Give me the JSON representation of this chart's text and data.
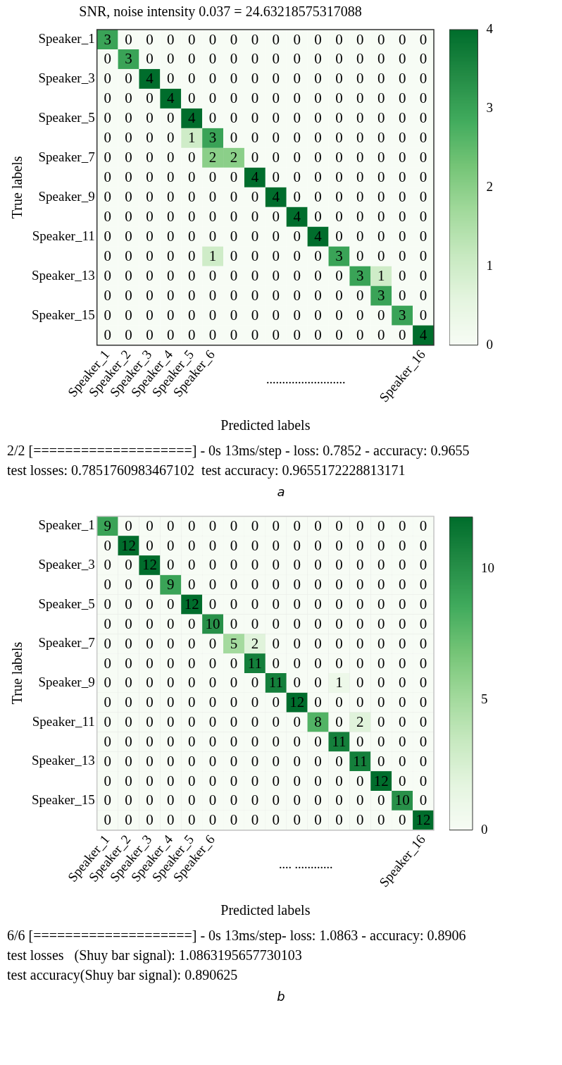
{
  "chart_data": [
    {
      "type": "heatmap",
      "title": "SNR, noise intensity 0.037 = 24.63218575317088",
      "xlabel": "Predicted labels",
      "ylabel": "True labels",
      "categories": [
        "Speaker_1",
        "Speaker_2",
        "Speaker_3",
        "Speaker_4",
        "Speaker_5",
        "Speaker_6",
        null,
        null,
        null,
        null,
        null,
        null,
        null,
        null,
        null,
        "Speaker_16"
      ],
      "y_categories": [
        "Speaker_1",
        null,
        "Speaker_3",
        null,
        "Speaker_5",
        null,
        "Speaker_7",
        null,
        "Speaker_9",
        null,
        "Speaker_11",
        null,
        "Speaker_13",
        null,
        "Speaker_15",
        null
      ],
      "cells": [
        [
          3,
          0,
          0,
          0,
          0,
          0,
          0,
          0,
          0,
          0,
          0,
          0,
          0,
          0,
          0,
          0
        ],
        [
          0,
          3,
          0,
          0,
          0,
          0,
          0,
          0,
          0,
          0,
          0,
          0,
          0,
          0,
          0,
          0
        ],
        [
          0,
          0,
          4,
          0,
          0,
          0,
          0,
          0,
          0,
          0,
          0,
          0,
          0,
          0,
          0,
          0
        ],
        [
          0,
          0,
          0,
          4,
          0,
          0,
          0,
          0,
          0,
          0,
          0,
          0,
          0,
          0,
          0,
          0
        ],
        [
          0,
          0,
          0,
          0,
          4,
          0,
          0,
          0,
          0,
          0,
          0,
          0,
          0,
          0,
          0,
          0
        ],
        [
          0,
          0,
          0,
          0,
          1,
          3,
          0,
          0,
          0,
          0,
          0,
          0,
          0,
          0,
          0,
          0
        ],
        [
          0,
          0,
          0,
          0,
          0,
          2,
          2,
          0,
          0,
          0,
          0,
          0,
          0,
          0,
          0,
          0
        ],
        [
          0,
          0,
          0,
          0,
          0,
          0,
          0,
          4,
          0,
          0,
          0,
          0,
          0,
          0,
          0,
          0
        ],
        [
          0,
          0,
          0,
          0,
          0,
          0,
          0,
          0,
          4,
          0,
          0,
          0,
          0,
          0,
          0,
          0
        ],
        [
          0,
          0,
          0,
          0,
          0,
          0,
          0,
          0,
          0,
          4,
          0,
          0,
          0,
          0,
          0,
          0
        ],
        [
          0,
          0,
          0,
          0,
          0,
          0,
          0,
          0,
          0,
          0,
          4,
          0,
          0,
          0,
          0,
          0
        ],
        [
          0,
          0,
          0,
          0,
          0,
          1,
          0,
          0,
          0,
          0,
          0,
          3,
          0,
          0,
          0,
          0
        ],
        [
          0,
          0,
          0,
          0,
          0,
          0,
          0,
          0,
          0,
          0,
          0,
          0,
          3,
          1,
          0,
          0
        ],
        [
          0,
          0,
          0,
          0,
          0,
          0,
          0,
          0,
          0,
          0,
          0,
          0,
          0,
          3,
          0,
          0
        ],
        [
          0,
          0,
          0,
          0,
          0,
          0,
          0,
          0,
          0,
          0,
          0,
          0,
          0,
          0,
          3,
          0
        ],
        [
          0,
          0,
          0,
          0,
          0,
          0,
          0,
          0,
          0,
          0,
          0,
          0,
          0,
          0,
          0,
          4
        ]
      ],
      "clim": [
        0,
        4
      ],
      "cticks": [
        0,
        1,
        2,
        3,
        4
      ],
      "data_labels": true,
      "grid": false,
      "annotations": [
        ".........................",
        "2/2 [====================] - 0s 13ms/step - loss: 0.7852 - accuracy: 0.9655",
        "test losses: 0.7851760983467102  test accuracy: 0.9655172228813171",
        "a"
      ]
    },
    {
      "type": "heatmap",
      "xlabel": "Predicted labels",
      "ylabel": "True labels",
      "categories": [
        "Speaker_1",
        "Speaker_2",
        "Speaker_3",
        "Speaker_4",
        "Speaker_5",
        "Speaker_6",
        null,
        null,
        null,
        null,
        null,
        null,
        null,
        null,
        null,
        "Speaker_16"
      ],
      "y_categories": [
        "Speaker_1",
        null,
        "Speaker_3",
        null,
        "Speaker_5",
        null,
        "Speaker_7",
        null,
        "Speaker_9",
        null,
        "Speaker_11",
        null,
        "Speaker_13",
        null,
        "Speaker_15",
        null
      ],
      "cells": [
        [
          9,
          0,
          0,
          0,
          0,
          0,
          0,
          0,
          0,
          0,
          0,
          0,
          0,
          0,
          0,
          0
        ],
        [
          0,
          12,
          0,
          0,
          0,
          0,
          0,
          0,
          0,
          0,
          0,
          0,
          0,
          0,
          0,
          0
        ],
        [
          0,
          0,
          12,
          0,
          0,
          0,
          0,
          0,
          0,
          0,
          0,
          0,
          0,
          0,
          0,
          0
        ],
        [
          0,
          0,
          0,
          9,
          0,
          0,
          0,
          0,
          0,
          0,
          0,
          0,
          0,
          0,
          0,
          0
        ],
        [
          0,
          0,
          0,
          0,
          12,
          0,
          0,
          0,
          0,
          0,
          0,
          0,
          0,
          0,
          0,
          0
        ],
        [
          0,
          0,
          0,
          0,
          0,
          10,
          0,
          0,
          0,
          0,
          0,
          0,
          0,
          0,
          0,
          0
        ],
        [
          0,
          0,
          0,
          0,
          0,
          0,
          5,
          2,
          0,
          0,
          0,
          0,
          0,
          0,
          0,
          0
        ],
        [
          0,
          0,
          0,
          0,
          0,
          0,
          0,
          11,
          0,
          0,
          0,
          0,
          0,
          0,
          0,
          0
        ],
        [
          0,
          0,
          0,
          0,
          0,
          0,
          0,
          0,
          11,
          0,
          0,
          1,
          0,
          0,
          0,
          0
        ],
        [
          0,
          0,
          0,
          0,
          0,
          0,
          0,
          0,
          0,
          12,
          0,
          0,
          0,
          0,
          0,
          0
        ],
        [
          0,
          0,
          0,
          0,
          0,
          0,
          0,
          0,
          0,
          0,
          8,
          0,
          2,
          0,
          0,
          0
        ],
        [
          0,
          0,
          0,
          0,
          0,
          0,
          0,
          0,
          0,
          0,
          0,
          11,
          0,
          0,
          0,
          0
        ],
        [
          0,
          0,
          0,
          0,
          0,
          0,
          0,
          0,
          0,
          0,
          0,
          0,
          11,
          0,
          0,
          0
        ],
        [
          0,
          0,
          0,
          0,
          0,
          0,
          0,
          0,
          0,
          0,
          0,
          0,
          0,
          12,
          0,
          0
        ],
        [
          0,
          0,
          0,
          0,
          0,
          0,
          0,
          0,
          0,
          0,
          0,
          0,
          0,
          0,
          10,
          0
        ],
        [
          0,
          0,
          0,
          0,
          0,
          0,
          0,
          0,
          0,
          0,
          0,
          0,
          0,
          0,
          0,
          12
        ]
      ],
      "clim": [
        0,
        12
      ],
      "cticks": [
        0,
        5,
        10
      ],
      "data_labels": true,
      "grid": true,
      "annotations": [
        ".... ............",
        "6/6 [====================] - 0s 13ms/step- loss: 1.0863 - accuracy: 0.8906",
        "test losses   (Shuy bar signal): 1.0863195657730103",
        "test accuracy(Shuy bar signal): 0.890625",
        "b"
      ]
    }
  ]
}
